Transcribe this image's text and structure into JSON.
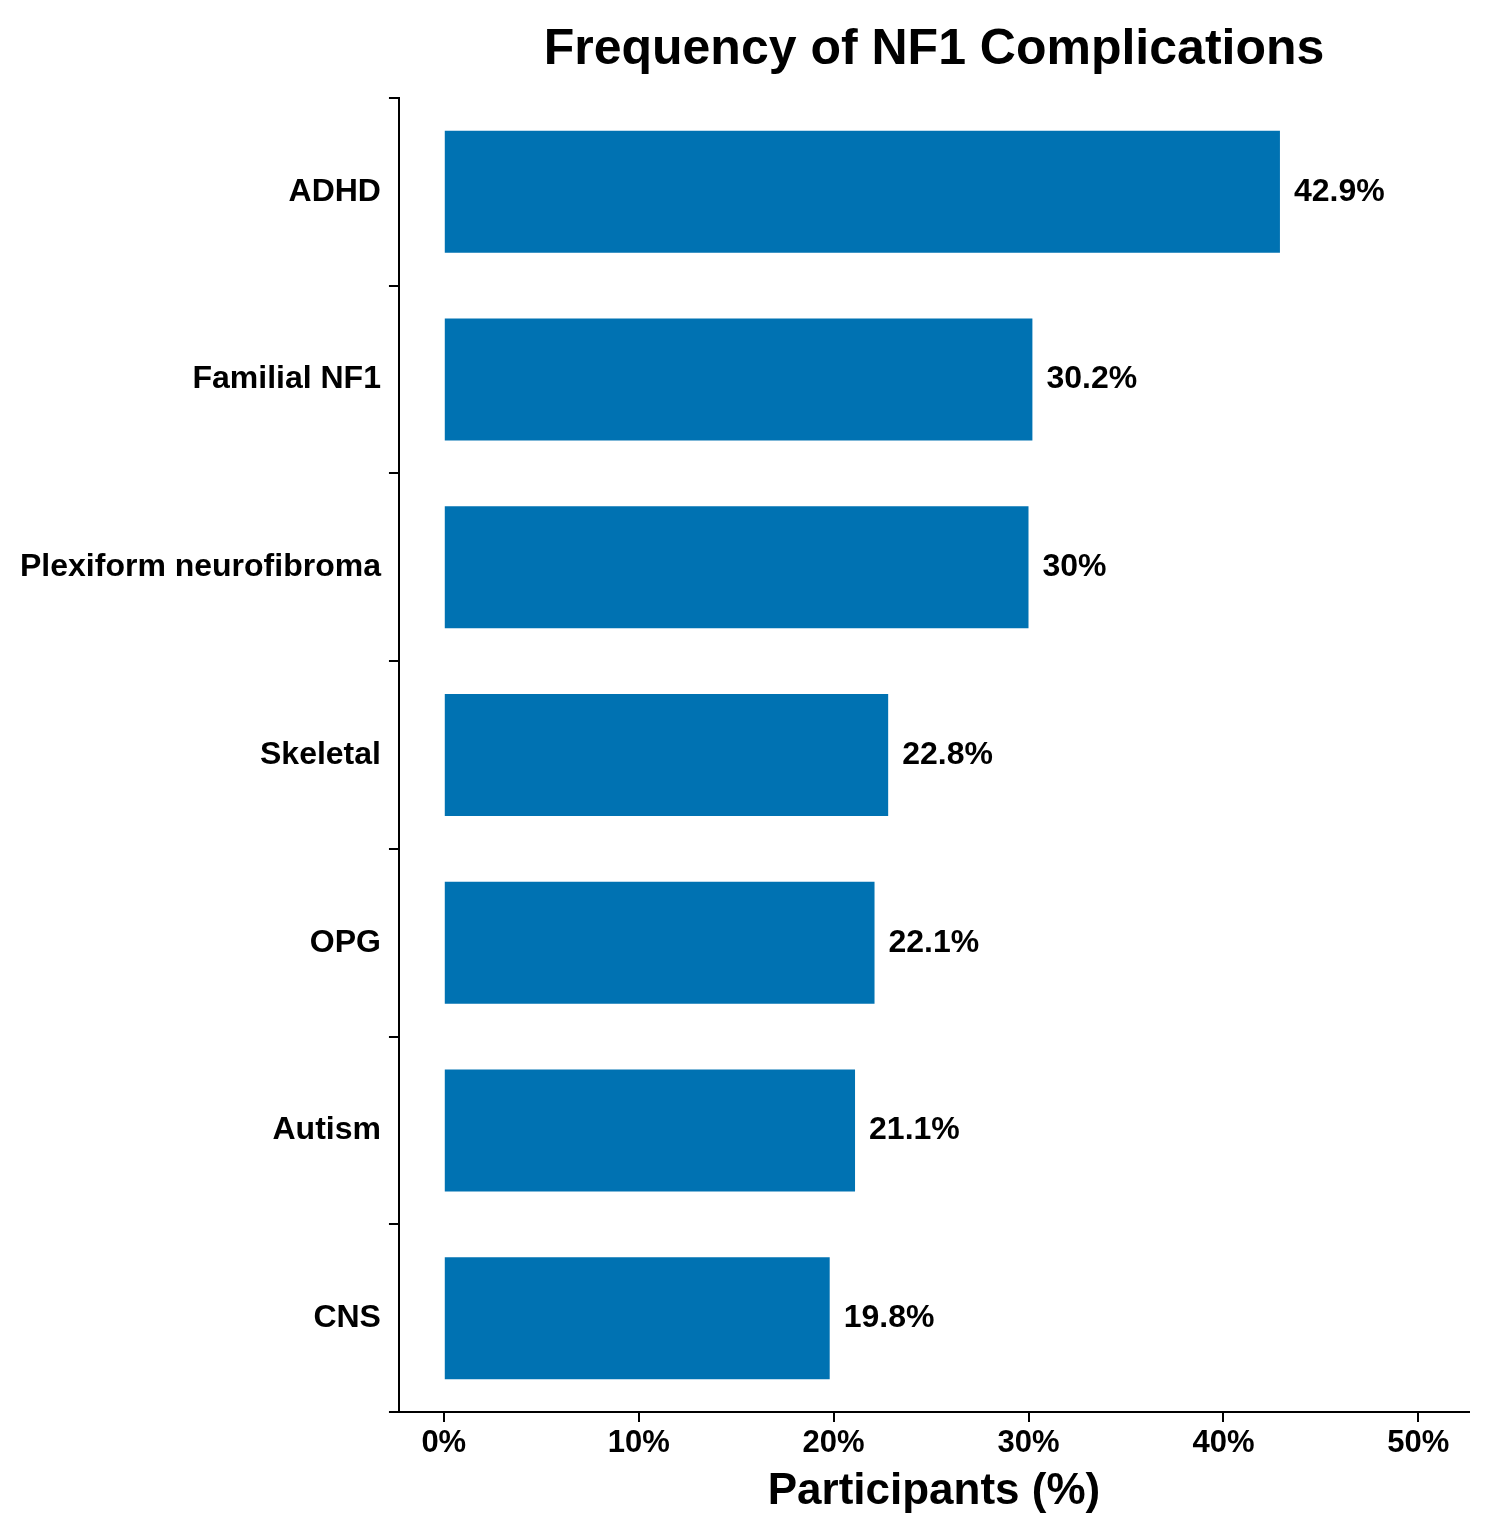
{
  "chart_data": {
    "type": "bar",
    "orientation": "horizontal",
    "title": "Frequency of NF1 Complications",
    "xlabel": "Participants (%)",
    "categories": [
      "ADHD",
      "Familial NF1",
      "Plexiform neurofibroma",
      "Skeletal",
      "OPG",
      "Autism",
      "CNS"
    ],
    "values": [
      42.9,
      30.2,
      30,
      22.8,
      22.1,
      21.1,
      19.8
    ],
    "value_labels": [
      "42.9%",
      "30.2%",
      "30%",
      "22.8%",
      "22.1%",
      "21.1%",
      "19.8%"
    ],
    "color": "#0072b2",
    "xlim": [
      -2.3,
      52.6
    ],
    "xticks": [
      {
        "value": 0,
        "label": "0%"
      },
      {
        "value": 10,
        "label": "10%"
      },
      {
        "value": 20,
        "label": "20%"
      },
      {
        "value": 30,
        "label": "30%"
      },
      {
        "value": 40,
        "label": "40%"
      },
      {
        "value": 50,
        "label": "50%"
      }
    ],
    "grid": false,
    "legend": false
  }
}
